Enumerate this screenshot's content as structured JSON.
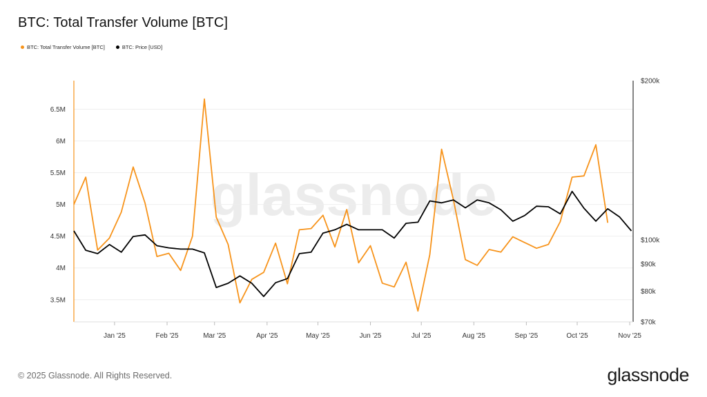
{
  "title": "BTC: Total Transfer Volume [BTC]",
  "footer": {
    "copyright": "© 2025 Glassnode. All Rights Reserved.",
    "brand": "glassnode"
  },
  "watermark": "glassnode",
  "colors": {
    "volume": "#f7931a",
    "price": "#000000",
    "grid": "#eeeeee",
    "watermark": "#ececec"
  },
  "chart_data": {
    "type": "line",
    "title": "BTC: Total Transfer Volume [BTC]",
    "legend_placement": "top-left",
    "grid": true,
    "x_range": [
      "2024-12-08",
      "2025-11-03"
    ],
    "x_ticks": [
      {
        "date": "2025-01-01",
        "label": "Jan '25"
      },
      {
        "date": "2025-02-01",
        "label": "Feb '25"
      },
      {
        "date": "2025-03-01",
        "label": "Mar '25"
      },
      {
        "date": "2025-04-01",
        "label": "Apr '25"
      },
      {
        "date": "2025-05-01",
        "label": "May '25"
      },
      {
        "date": "2025-06-01",
        "label": "Jun '25"
      },
      {
        "date": "2025-07-01",
        "label": "Jul '25"
      },
      {
        "date": "2025-08-01",
        "label": "Aug '25"
      },
      {
        "date": "2025-09-01",
        "label": "Sep '25"
      },
      {
        "date": "2025-10-01",
        "label": "Oct '25"
      },
      {
        "date": "2025-11-01",
        "label": "Nov '25"
      }
    ],
    "y_left": {
      "range": [
        3150000,
        6950000
      ],
      "ticks": [
        {
          "value": 3500000,
          "label": "3.5M"
        },
        {
          "value": 4000000,
          "label": "4M"
        },
        {
          "value": 4500000,
          "label": "4.5M"
        },
        {
          "value": 5000000,
          "label": "5M"
        },
        {
          "value": 5500000,
          "label": "5.5M"
        },
        {
          "value": 6000000,
          "label": "6M"
        },
        {
          "value": 6500000,
          "label": "6.5M"
        }
      ]
    },
    "y_right": {
      "scale": "log",
      "range": [
        70000,
        200000
      ],
      "ticks": [
        {
          "value": 70000,
          "label": "$70k"
        },
        {
          "value": 80000,
          "label": "$80k"
        },
        {
          "value": 90000,
          "label": "$90k"
        },
        {
          "value": 100000,
          "label": "$100k"
        },
        {
          "value": 200000,
          "label": "$200k"
        }
      ]
    },
    "x": [
      "2024-12-08",
      "2024-12-15",
      "2024-12-22",
      "2024-12-29",
      "2025-01-05",
      "2025-01-12",
      "2025-01-19",
      "2025-01-26",
      "2025-02-02",
      "2025-02-09",
      "2025-02-16",
      "2025-02-23",
      "2025-03-02",
      "2025-03-09",
      "2025-03-16",
      "2025-03-23",
      "2025-03-30",
      "2025-04-06",
      "2025-04-13",
      "2025-04-20",
      "2025-04-27",
      "2025-05-04",
      "2025-05-11",
      "2025-05-18",
      "2025-05-25",
      "2025-06-01",
      "2025-06-08",
      "2025-06-15",
      "2025-06-22",
      "2025-06-29",
      "2025-07-06",
      "2025-07-13",
      "2025-07-20",
      "2025-07-27",
      "2025-08-03",
      "2025-08-10",
      "2025-08-17",
      "2025-08-24",
      "2025-08-31",
      "2025-09-07",
      "2025-09-14",
      "2025-09-21",
      "2025-09-28",
      "2025-10-05",
      "2025-10-12",
      "2025-10-19",
      "2025-10-26",
      "2025-11-02"
    ],
    "series": [
      {
        "name": "BTC: Total Transfer Volume [BTC]",
        "axis": "left",
        "color": "#f7931a",
        "values": [
          5000000,
          5430000,
          4280000,
          4470000,
          4880000,
          5590000,
          5020000,
          4180000,
          4230000,
          3960000,
          4500000,
          6660000,
          4800000,
          4370000,
          3450000,
          3820000,
          3930000,
          4390000,
          3750000,
          4600000,
          4620000,
          4830000,
          4330000,
          4920000,
          4080000,
          4350000,
          3760000,
          3700000,
          4090000,
          3320000,
          4210000,
          5870000,
          5070000,
          4130000,
          4040000,
          4290000,
          4250000,
          4490000,
          4400000,
          4310000,
          4370000,
          4730000,
          5430000,
          5450000,
          5940000,
          4710000,
          null,
          null
        ]
      },
      {
        "name": "BTC: Price [USD]",
        "axis": "right",
        "color": "#000000",
        "values": [
          104000,
          95600,
          94200,
          98000,
          94800,
          101500,
          102200,
          97500,
          96600,
          96100,
          96100,
          94500,
          81300,
          82800,
          85500,
          82800,
          78200,
          83000,
          84500,
          94200,
          94800,
          103000,
          104500,
          107000,
          104500,
          104500,
          104500,
          100800,
          107500,
          108000,
          118500,
          117500,
          119000,
          115000,
          119000,
          117500,
          114000,
          108500,
          111200,
          115800,
          115500,
          112000,
          123500,
          114800,
          108500,
          114500,
          110500,
          104000
        ]
      }
    ]
  }
}
